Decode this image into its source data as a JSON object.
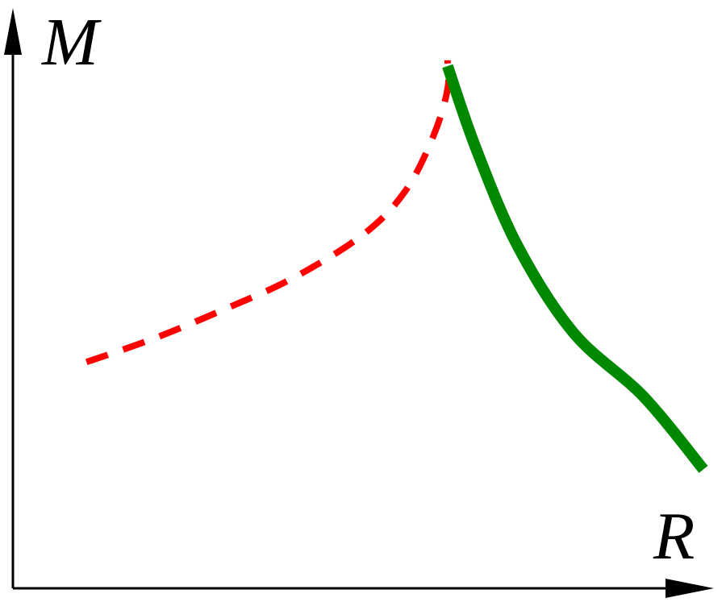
{
  "chart_data": {
    "type": "line",
    "xlabel": "R",
    "ylabel": "M",
    "ticks": false,
    "grid": false,
    "xlim": [
      0,
      10
    ],
    "ylim": [
      0,
      10
    ],
    "series": [
      {
        "style": "dashed",
        "color": "#ff0000",
        "points": [
          [
            1.05,
            3.9
          ],
          [
            2.0,
            4.3
          ],
          [
            3.0,
            4.8
          ],
          [
            4.0,
            5.35
          ],
          [
            5.0,
            6.1
          ],
          [
            5.6,
            6.85
          ],
          [
            6.0,
            7.8
          ],
          [
            6.2,
            8.6
          ],
          [
            6.2,
            9.1
          ]
        ]
      },
      {
        "style": "solid",
        "color": "#008800",
        "points": [
          [
            6.2,
            9.0
          ],
          [
            6.6,
            7.6
          ],
          [
            7.2,
            5.9
          ],
          [
            8.0,
            4.4
          ],
          [
            9.0,
            3.3
          ],
          [
            9.85,
            2.05
          ]
        ]
      }
    ]
  }
}
